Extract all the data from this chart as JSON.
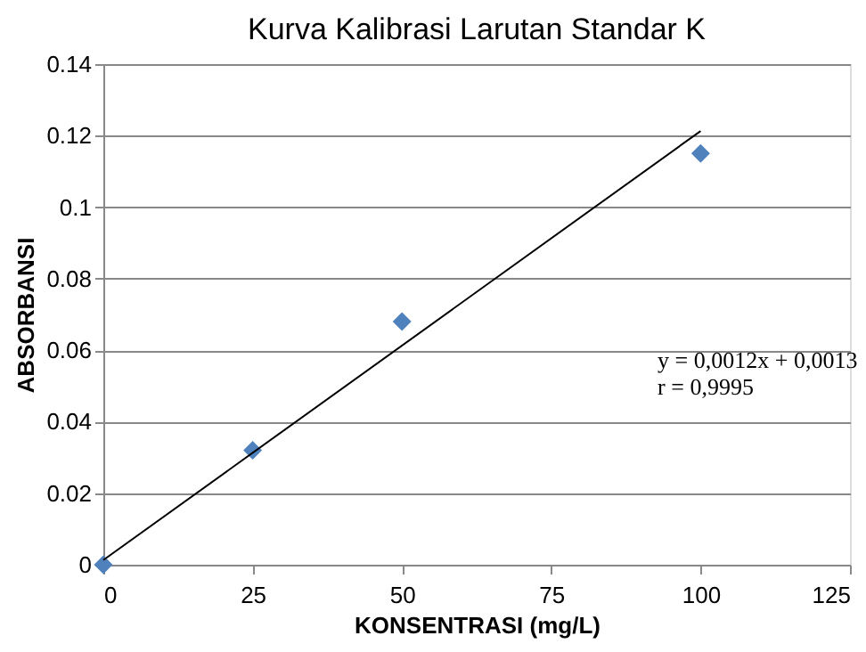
{
  "chart_data": {
    "type": "scatter",
    "title": "Kurva Kalibrasi Larutan Standar K",
    "xlabel": "KONSENTRASI (mg/L)",
    "ylabel": "ABSORBANSI",
    "xlim": [
      0,
      125
    ],
    "xticks": [
      0,
      25,
      50,
      75,
      100,
      125
    ],
    "ylim": [
      0,
      0.14
    ],
    "yticks": [
      0,
      0.02,
      0.04,
      0.06,
      0.08,
      0.1,
      0.12,
      0.14
    ],
    "grid": "y",
    "series": [
      {
        "color": "#4f81bd",
        "marker": "diamond",
        "x": [
          0,
          25,
          50,
          100
        ],
        "values": [
          0,
          0.032,
          0.068,
          0.115
        ]
      },
      {
        "type": "line",
        "color": "#000000",
        "marker": "none",
        "line_style": "solid",
        "x": [
          0,
          100
        ],
        "values": [
          0.0013,
          0.1213
        ]
      }
    ],
    "annotations": [
      "y = 0,0012x + 0,0013",
      "r = 0,9995"
    ]
  }
}
